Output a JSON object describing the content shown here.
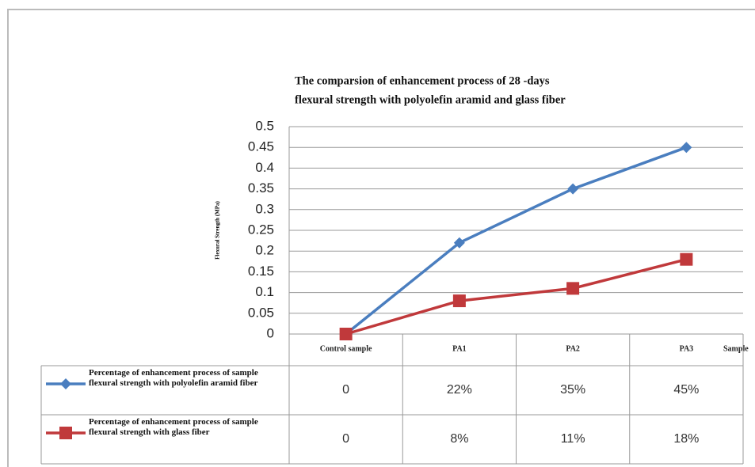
{
  "chart_data": {
    "type": "line",
    "title": [
      "The comparsion of enhancement process of 28 -days",
      "flexural strength with polyolefin aramid and glass fiber"
    ],
    "y_label": "Flexural Strength (MPa)",
    "x_label": "Sample",
    "categories": [
      "Control sample",
      "PA1",
      "PA2",
      "PA3"
    ],
    "series": [
      {
        "name": "Percentage of enhancement process of sample flexural strength with polyolefin aramid fiber",
        "color": "#4a7ebf",
        "marker": "diamond",
        "values": [
          0,
          0.22,
          0.35,
          0.45
        ],
        "value_labels": [
          "0",
          "22%",
          "35%",
          "45%"
        ]
      },
      {
        "name": "Percentage of enhancement process of sample flexural strength with glass fiber",
        "color": "#c0393b",
        "marker": "square",
        "values": [
          0,
          0.08,
          0.11,
          0.18
        ],
        "value_labels": [
          "0",
          "8%",
          "11%",
          "18%"
        ]
      }
    ],
    "ylim": [
      0,
      0.5
    ],
    "yticks": [
      0,
      0.05,
      0.1,
      0.15,
      0.2,
      0.25,
      0.3,
      0.35,
      0.4,
      0.45,
      0.5
    ],
    "grid": true
  }
}
